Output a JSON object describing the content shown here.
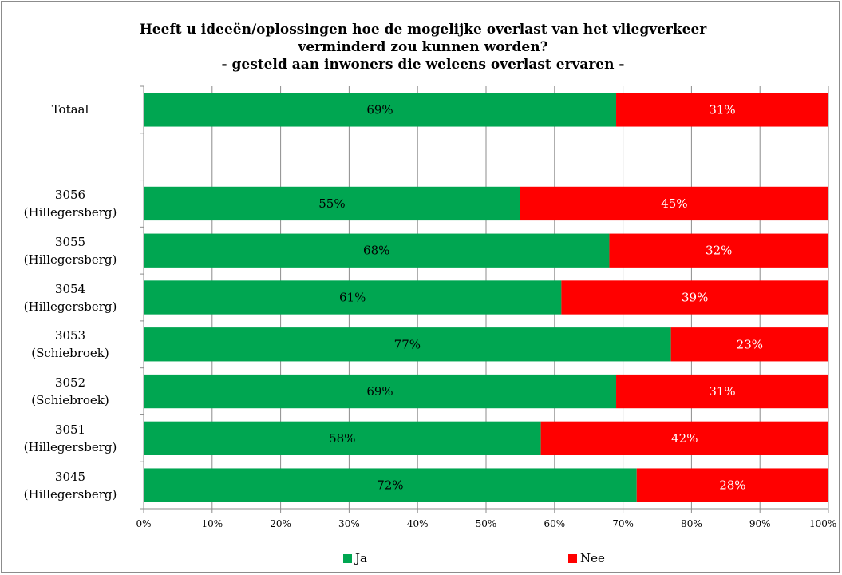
{
  "chart_data": {
    "type": "bar",
    "orientation": "horizontal",
    "stacked": "100%",
    "title": [
      "Heeft u ideeën/oplossingen hoe de mogelijke overlast van het vliegverkeer",
      "verminderd zou kunnen worden?",
      "- gesteld aan inwoners die weleens overlast ervaren -"
    ],
    "categories": [
      [
        "Totaal"
      ],
      [
        ""
      ],
      [
        "3056",
        "(Hillegersberg)"
      ],
      [
        "3055",
        "(Hillegersberg)"
      ],
      [
        "3054",
        "(Hillegersberg)"
      ],
      [
        "3053",
        "(Schiebroek)"
      ],
      [
        "3052",
        "(Schiebroek)"
      ],
      [
        "3051",
        "(Hillegersberg)"
      ],
      [
        "3045",
        "(Hillegersberg)"
      ]
    ],
    "series": [
      {
        "name": "Ja",
        "color": "#00a651",
        "label_color": "#000000",
        "values": [
          69,
          null,
          55,
          68,
          61,
          77,
          69,
          58,
          72
        ],
        "labels": [
          "69%",
          "",
          "55%",
          "68%",
          "61%",
          "77%",
          "69%",
          "58%",
          "72%"
        ]
      },
      {
        "name": "Nee",
        "color": "#ff0000",
        "label_color": "#ffffff",
        "values": [
          31,
          null,
          45,
          32,
          39,
          23,
          31,
          42,
          28
        ],
        "labels": [
          "31%",
          "",
          "45%",
          "32%",
          "39%",
          "23%",
          "31%",
          "42%",
          "28%"
        ]
      }
    ],
    "x_ticks": [
      "0%",
      "10%",
      "20%",
      "30%",
      "40%",
      "50%",
      "60%",
      "70%",
      "80%",
      "90%",
      "100%"
    ],
    "xlim": [
      0,
      100
    ],
    "grid": true,
    "legend_position": "bottom"
  }
}
